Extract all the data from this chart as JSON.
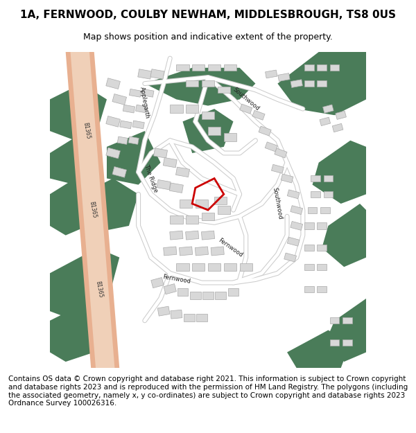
{
  "title": "1A, FERNWOOD, COULBY NEWHAM, MIDDLESBROUGH, TS8 0US",
  "subtitle": "Map shows position and indicative extent of the property.",
  "footer": "Contains OS data © Crown copyright and database right 2021. This information is subject to Crown copyright and database rights 2023 and is reproduced with the permission of HM Land Registry. The polygons (including the associated geometry, namely x, y co-ordinates) are subject to Crown copyright and database rights 2023 Ordnance Survey 100026316.",
  "map_bg": "#ffffff",
  "green_color": "#4a7c59",
  "road_color": "#f0d0b8",
  "road_outline_color": "#e8b090",
  "building_color": "#d8d8d8",
  "building_outline": "#aaaaaa",
  "street_outline_color": "#cccccc",
  "plot_color_fill": "none",
  "plot_color_stroke": "#cc0000",
  "title_fontsize": 11,
  "subtitle_fontsize": 9,
  "footer_fontsize": 7.5
}
